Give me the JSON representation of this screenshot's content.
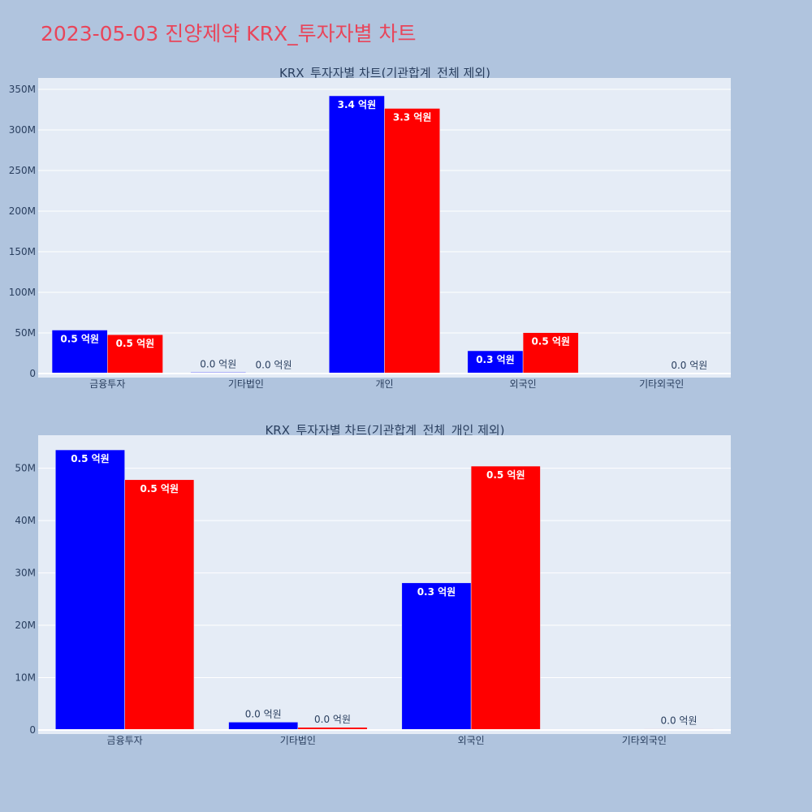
{
  "page_title": "2023-05-03 진양제약 KRX_투자자별 차트",
  "colors": {
    "series_a": "#0000ff",
    "series_b": "#ff0000",
    "plot_bg": "#e5ecf6",
    "page_bg": "#b0c4de",
    "title": "#e8455a"
  },
  "chart_data": [
    {
      "type": "bar",
      "title": "KRX_투자자별 차트(기관합계_전체 제외)",
      "categories": [
        "금융투자",
        "기타법인",
        "개인",
        "외국인",
        "기타외국인"
      ],
      "ylim": [
        0,
        365000000
      ],
      "yticks": [
        0,
        50000000,
        100000000,
        150000000,
        200000000,
        250000000,
        300000000,
        350000000
      ],
      "ytick_labels": [
        "0",
        "50M",
        "100M",
        "150M",
        "200M",
        "250M",
        "300M",
        "350M"
      ],
      "grid": true,
      "series": [
        {
          "values": [
            53500000,
            1500000,
            342000000,
            28000000,
            0
          ],
          "labels": [
            "0.5 억원",
            "0.0 억원",
            "3.4 억원",
            "0.3 억원",
            ""
          ]
        },
        {
          "values": [
            47800000,
            500000,
            326500000,
            50300000,
            200000
          ],
          "labels": [
            "0.5 억원",
            "0.0 억원",
            "3.3 억원",
            "0.5 억원",
            "0.0 억원"
          ]
        }
      ]
    },
    {
      "type": "bar",
      "title": "KRX_투자자별 차트(기관합계_전체_개인 제외)",
      "categories": [
        "금융투자",
        "기타법인",
        "외국인",
        "기타외국인"
      ],
      "ylim": [
        0,
        56300000
      ],
      "yticks": [
        0,
        10000000,
        20000000,
        30000000,
        40000000,
        50000000
      ],
      "ytick_labels": [
        "0",
        "10M",
        "20M",
        "30M",
        "40M",
        "50M"
      ],
      "grid": true,
      "series": [
        {
          "values": [
            53500000,
            1500000,
            28100000,
            0
          ],
          "labels": [
            "0.5 억원",
            "0.0 억원",
            "0.3 억원",
            ""
          ]
        },
        {
          "values": [
            47800000,
            500000,
            50400000,
            200000
          ],
          "labels": [
            "0.5 억원",
            "0.0 억원",
            "0.5 억원",
            "0.0 억원"
          ]
        }
      ]
    }
  ]
}
